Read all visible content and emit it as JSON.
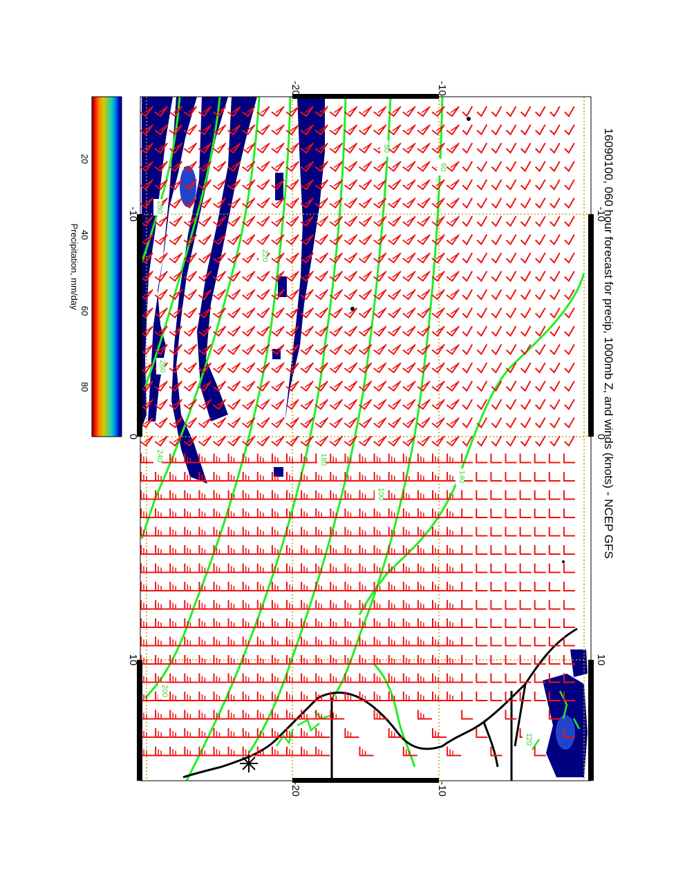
{
  "title": "16090100, 060 hour forecast for precip, 1000mb Z, and winds (knots) - NCEP GFS",
  "colorbar": {
    "label": "Precipitation, mm/day",
    "ticks": [
      "20",
      "40",
      "60",
      "80"
    ],
    "gradient": [
      "#7f0000",
      "#ee1100",
      "#ff8800",
      "#cccc00",
      "#66cc66",
      "#00cccc",
      "#0077dd",
      "#0000aa",
      "#00007f"
    ]
  },
  "axes": {
    "longitude_ticks": [
      "-10",
      "0",
      "10"
    ],
    "latitude_ticks": [
      "-20",
      "-10"
    ]
  },
  "contours": {
    "labels": [
      "60",
      "80",
      "100",
      "140",
      "180",
      "200",
      "220",
      "240",
      "260",
      "280",
      "120"
    ],
    "color": "#22ee22"
  },
  "colors": {
    "precip": "#000080",
    "precip_light": "#2244cc",
    "wind_barb": "#ee1111",
    "coastline": "#000000",
    "grid": "#cc9900",
    "contour": "#22ee22"
  },
  "legend_icons": [
    "star-marker-icon"
  ]
}
